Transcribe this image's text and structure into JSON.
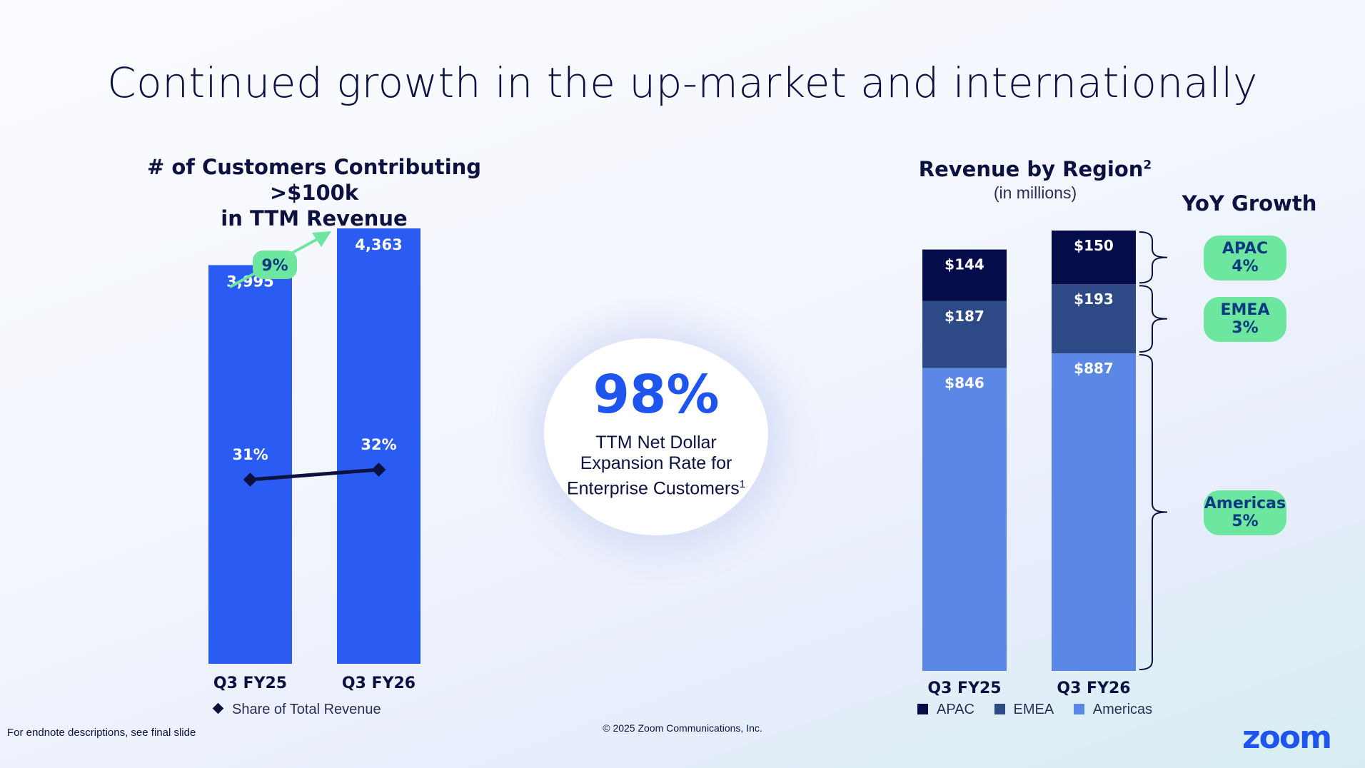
{
  "title": "Continued growth in the up-market and internationally",
  "left_chart_title_line1": "# of Customers Contributing >$100k",
  "left_chart_title_line2": "in TTM Revenue",
  "right_chart_title": "Revenue by Region",
  "right_chart_title_sup": "2",
  "right_chart_unit": "(in millions)",
  "yoy_title": "YoY Growth",
  "center": {
    "value": "98%",
    "label_lines": [
      "TTM Net Dollar",
      "Expansion Rate for",
      "Enterprise Customers"
    ],
    "label_sup": "1"
  },
  "legend_left": "Share of Total Revenue",
  "legend_right": [
    {
      "name": "APAC",
      "color": "#050c4a"
    },
    {
      "name": "EMEA",
      "color": "#2e4a86"
    },
    {
      "name": "Americas",
      "color": "#5b88e6"
    }
  ],
  "endnote": "For endnote descriptions, see final slide",
  "copyright": "© 2025 Zoom Communications, Inc.",
  "logo": "zoom",
  "colors": {
    "bar_blue": "#2a5bf2",
    "navy": "#0b1240",
    "green": "#6de6a0"
  },
  "chart_data": [
    {
      "type": "bar",
      "title": "# of Customers Contributing >$100k in TTM Revenue",
      "categories": [
        "Q3 FY25",
        "Q3 FY26"
      ],
      "values": [
        3995,
        4363
      ],
      "value_labels": [
        "3,995",
        "4,363"
      ],
      "growth_label": "9%",
      "line_series": {
        "name": "Share of Total Revenue",
        "values": [
          31,
          32
        ],
        "labels": [
          "31%",
          "32%"
        ]
      }
    },
    {
      "type": "bar",
      "stacked": true,
      "title": "Revenue by Region",
      "categories": [
        "Q3 FY25",
        "Q3 FY26"
      ],
      "series": [
        {
          "name": "Americas",
          "values": [
            846,
            887
          ],
          "labels": [
            "$846",
            "$887"
          ],
          "yoy": "5%"
        },
        {
          "name": "EMEA",
          "values": [
            187,
            193
          ],
          "labels": [
            "$187",
            "$193"
          ],
          "yoy": "3%"
        },
        {
          "name": "APAC",
          "values": [
            144,
            150
          ],
          "labels": [
            "$144",
            "$150"
          ],
          "yoy": "4%"
        }
      ]
    }
  ]
}
